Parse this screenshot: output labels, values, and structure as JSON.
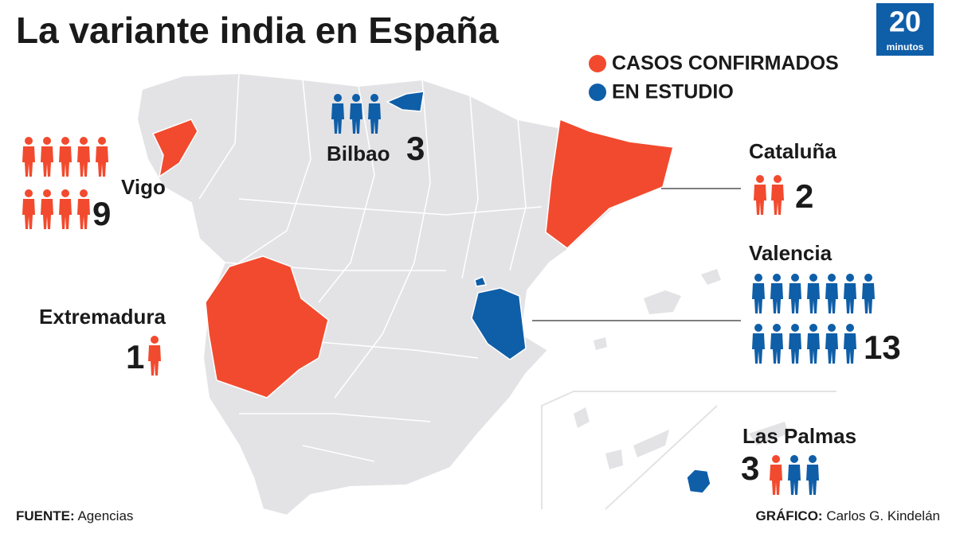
{
  "header": {
    "title": "La variante india en España",
    "logo": {
      "number": "20",
      "text": "minutos"
    }
  },
  "legend": [
    {
      "label": "CASOS CONFIRMADOS",
      "color": "#f24a2e"
    },
    {
      "label": "EN ESTUDIO",
      "color": "#0f5ea8"
    }
  ],
  "callouts": [
    {
      "label": "Vigo",
      "value": 9,
      "confirmed": 9,
      "in_study": 0
    },
    {
      "label": "Bilbao",
      "value": 3,
      "confirmed": 0,
      "in_study": 3
    },
    {
      "label": "Cataluña",
      "value": 2,
      "confirmed": 2,
      "in_study": 0
    },
    {
      "label": "Valencia",
      "value": 13,
      "confirmed": 0,
      "in_study": 13
    },
    {
      "label": "Extremadura",
      "value": 1,
      "confirmed": 1,
      "in_study": 0
    },
    {
      "label": "Las Palmas",
      "value": 3,
      "confirmed": 1,
      "in_study": 2
    }
  ],
  "footer": {
    "source_label": "FUENTE:",
    "source": "Agencias",
    "credit_label": "GRÁFICO:",
    "credit": "Carlos G. Kindelán"
  }
}
